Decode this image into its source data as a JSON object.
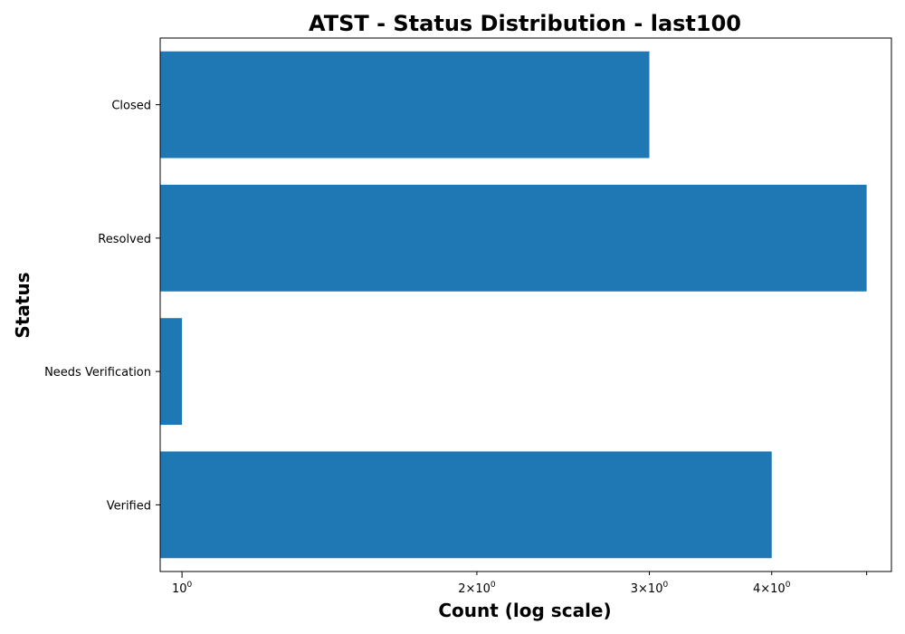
{
  "chart_data": {
    "type": "bar",
    "orientation": "horizontal",
    "title": "ATST - Status Distribution - last100",
    "xlabel": "Count (log scale)",
    "ylabel": "Status",
    "x_scale": "log",
    "xlim": [
      0.95,
      5.3
    ],
    "categories": [
      "Verified",
      "Needs Verification",
      "Resolved",
      "Closed"
    ],
    "values": [
      4,
      1,
      5,
      3
    ],
    "x_ticks": [
      {
        "value": 1,
        "base": "10",
        "exp": "0",
        "mult": ""
      },
      {
        "value": 2,
        "base": "10",
        "exp": "0",
        "mult": "2×"
      },
      {
        "value": 3,
        "base": "10",
        "exp": "0",
        "mult": "3×"
      },
      {
        "value": 4,
        "base": "10",
        "exp": "0",
        "mult": "4×"
      }
    ],
    "extra_minor_ticks": [
      5
    ],
    "bar_color": "#1f77b4",
    "grid": false,
    "legend": "none"
  }
}
